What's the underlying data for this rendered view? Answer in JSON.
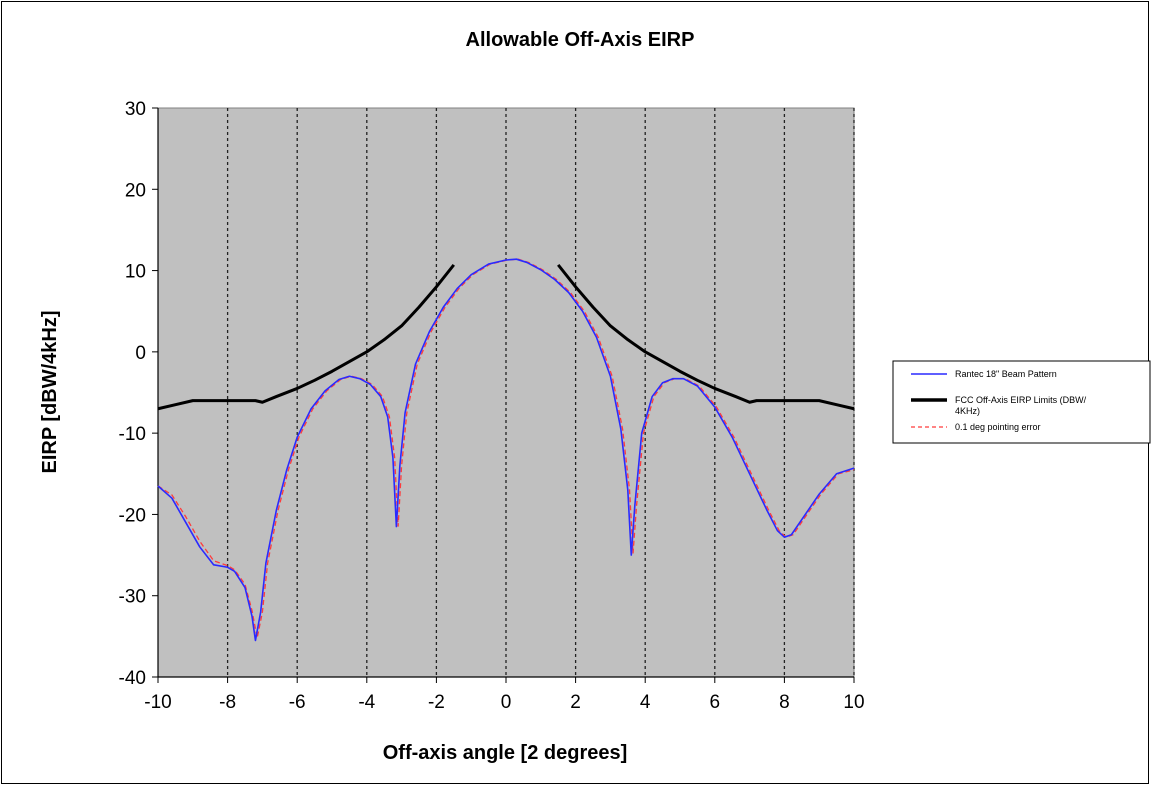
{
  "chart_data": {
    "type": "line",
    "title": "Allowable Off-Axis EIRP",
    "xlabel": "Off-axis angle [2 degrees]",
    "ylabel": "EIRP [dBW/4kHz]",
    "xlim": [
      -10,
      10
    ],
    "ylim": [
      -40,
      30
    ],
    "x_ticks": [
      -10,
      -8,
      -6,
      -4,
      -2,
      0,
      2,
      4,
      6,
      8,
      10
    ],
    "y_ticks": [
      -40,
      -30,
      -20,
      -10,
      0,
      10,
      20,
      30
    ],
    "x_tick_labels": [
      "-10",
      "-8",
      "-6",
      "-4",
      "-2",
      "0",
      "2",
      "4",
      "6",
      "8",
      "10"
    ],
    "y_tick_labels": [
      "-40",
      "-30",
      "-20",
      "-10",
      "0",
      "10",
      "20",
      "30"
    ],
    "grid": "vertical dashed at x ticks",
    "plot_background": "#c0c0c0",
    "legend_position": "right",
    "series": [
      {
        "name": "Rantec 18\" Beam Pattern",
        "color": "#2a2aff",
        "style": "solid",
        "points": [
          [
            -10,
            -16.5
          ],
          [
            -9.6,
            -18
          ],
          [
            -9.2,
            -21
          ],
          [
            -8.8,
            -24
          ],
          [
            -8.4,
            -26.2
          ],
          [
            -8.0,
            -26.5
          ],
          [
            -7.8,
            -27
          ],
          [
            -7.5,
            -29
          ],
          [
            -7.3,
            -32.5
          ],
          [
            -7.2,
            -35.5
          ],
          [
            -7.05,
            -32
          ],
          [
            -6.9,
            -26
          ],
          [
            -6.6,
            -19.5
          ],
          [
            -6.3,
            -14.5
          ],
          [
            -6.0,
            -10.5
          ],
          [
            -5.6,
            -7
          ],
          [
            -5.2,
            -4.8
          ],
          [
            -4.8,
            -3.4
          ],
          [
            -4.5,
            -3.0
          ],
          [
            -4.2,
            -3.3
          ],
          [
            -3.9,
            -4
          ],
          [
            -3.6,
            -5.5
          ],
          [
            -3.4,
            -8
          ],
          [
            -3.25,
            -13
          ],
          [
            -3.15,
            -21.5
          ],
          [
            -3.05,
            -14
          ],
          [
            -2.9,
            -7.5
          ],
          [
            -2.6,
            -1.5
          ],
          [
            -2.2,
            2.5
          ],
          [
            -1.8,
            5.5
          ],
          [
            -1.4,
            7.8
          ],
          [
            -1.0,
            9.5
          ],
          [
            -0.5,
            10.8
          ],
          [
            0.0,
            11.3
          ],
          [
            0.3,
            11.4
          ],
          [
            0.6,
            11.0
          ],
          [
            1.0,
            10.1
          ],
          [
            1.4,
            8.9
          ],
          [
            1.8,
            7.3
          ],
          [
            2.2,
            5.0
          ],
          [
            2.6,
            1.8
          ],
          [
            3.0,
            -3.0
          ],
          [
            3.3,
            -9.5
          ],
          [
            3.5,
            -17
          ],
          [
            3.6,
            -25
          ],
          [
            3.7,
            -19
          ],
          [
            3.9,
            -10
          ],
          [
            4.2,
            -5.5
          ],
          [
            4.5,
            -3.8
          ],
          [
            4.8,
            -3.3
          ],
          [
            5.1,
            -3.3
          ],
          [
            5.5,
            -4.2
          ],
          [
            6.0,
            -6.8
          ],
          [
            6.5,
            -10.5
          ],
          [
            7.0,
            -15
          ],
          [
            7.5,
            -19.5
          ],
          [
            7.8,
            -22
          ],
          [
            8.0,
            -22.8
          ],
          [
            8.2,
            -22.5
          ],
          [
            8.6,
            -20
          ],
          [
            9.0,
            -17.5
          ],
          [
            9.5,
            -15
          ],
          [
            10.0,
            -14.3
          ]
        ]
      },
      {
        "name": "FCC Off-Axis EIRP Limits (DBW/ 4KHz)",
        "color": "#000000",
        "style": "thick-solid",
        "segments": [
          [
            [
              -10,
              -7
            ],
            [
              -9.5,
              -6.5
            ],
            [
              -9,
              -6
            ],
            [
              -8,
              -6
            ],
            [
              -7.2,
              -6
            ],
            [
              -7,
              -6.2
            ],
            [
              -6.6,
              -5.5
            ],
            [
              -6.0,
              -4.5
            ],
            [
              -5.5,
              -3.5
            ],
            [
              -5,
              -2.4
            ],
            [
              -4.5,
              -1.2
            ],
            [
              -4,
              0
            ],
            [
              -3.5,
              1.5
            ],
            [
              -3,
              3.2
            ],
            [
              -2.5,
              5.5
            ],
            [
              -2,
              8.0
            ],
            [
              -1.5,
              10.7
            ]
          ],
          [
            [
              1.5,
              10.7
            ],
            [
              2,
              8.0
            ],
            [
              2.5,
              5.5
            ],
            [
              3,
              3.2
            ],
            [
              3.5,
              1.5
            ],
            [
              4,
              0
            ],
            [
              4.5,
              -1.2
            ],
            [
              5,
              -2.4
            ],
            [
              5.5,
              -3.5
            ],
            [
              6,
              -4.5
            ],
            [
              6.6,
              -5.5
            ],
            [
              7,
              -6.2
            ],
            [
              7.2,
              -6
            ],
            [
              8,
              -6
            ],
            [
              9,
              -6
            ],
            [
              9.5,
              -6.5
            ],
            [
              10,
              -7
            ]
          ]
        ]
      },
      {
        "name": "0.1 deg pointing error",
        "color": "#ff3b3b",
        "style": "dashed",
        "points": [
          [
            -10,
            -16.5
          ],
          [
            -9.6,
            -17.6
          ],
          [
            -9.2,
            -20.3
          ],
          [
            -8.8,
            -23.3
          ],
          [
            -8.4,
            -25.7
          ],
          [
            -8.0,
            -26.3
          ],
          [
            -7.8,
            -26.8
          ],
          [
            -7.5,
            -28.6
          ],
          [
            -7.3,
            -31.8
          ],
          [
            -7.15,
            -35.2
          ],
          [
            -7.0,
            -32
          ],
          [
            -6.85,
            -26
          ],
          [
            -6.55,
            -19.5
          ],
          [
            -6.25,
            -14.5
          ],
          [
            -5.95,
            -10.5
          ],
          [
            -5.55,
            -7
          ],
          [
            -5.15,
            -4.8
          ],
          [
            -4.75,
            -3.4
          ],
          [
            -4.45,
            -3.0
          ],
          [
            -4.15,
            -3.3
          ],
          [
            -3.85,
            -4
          ],
          [
            -3.55,
            -5.5
          ],
          [
            -3.35,
            -8
          ],
          [
            -3.2,
            -13
          ],
          [
            -3.1,
            -21.5
          ],
          [
            -3.0,
            -14
          ],
          [
            -2.85,
            -7.5
          ],
          [
            -2.55,
            -1.5
          ],
          [
            -2.15,
            2.5
          ],
          [
            -1.75,
            5.5
          ],
          [
            -1.35,
            7.8
          ],
          [
            -0.95,
            9.5
          ],
          [
            -0.45,
            10.8
          ],
          [
            0.05,
            11.3
          ],
          [
            0.35,
            11.4
          ],
          [
            0.65,
            11.0
          ],
          [
            1.05,
            10.1
          ],
          [
            1.45,
            8.9
          ],
          [
            1.85,
            7.3
          ],
          [
            2.25,
            5.0
          ],
          [
            2.65,
            1.8
          ],
          [
            3.05,
            -3.0
          ],
          [
            3.35,
            -9.5
          ],
          [
            3.55,
            -17
          ],
          [
            3.65,
            -24.8
          ],
          [
            3.75,
            -19
          ],
          [
            3.95,
            -10
          ],
          [
            4.25,
            -5.5
          ],
          [
            4.55,
            -3.8
          ],
          [
            4.85,
            -3.3
          ],
          [
            5.15,
            -3.3
          ],
          [
            5.55,
            -4.2
          ],
          [
            6.05,
            -6.8
          ],
          [
            6.55,
            -10.5
          ],
          [
            7.05,
            -15
          ],
          [
            7.55,
            -19.5
          ],
          [
            7.85,
            -22
          ],
          [
            8.05,
            -22.8
          ],
          [
            8.25,
            -22.5
          ],
          [
            8.65,
            -20
          ],
          [
            9.05,
            -17.5
          ],
          [
            9.55,
            -15
          ],
          [
            10.0,
            -14.5
          ]
        ]
      }
    ]
  }
}
